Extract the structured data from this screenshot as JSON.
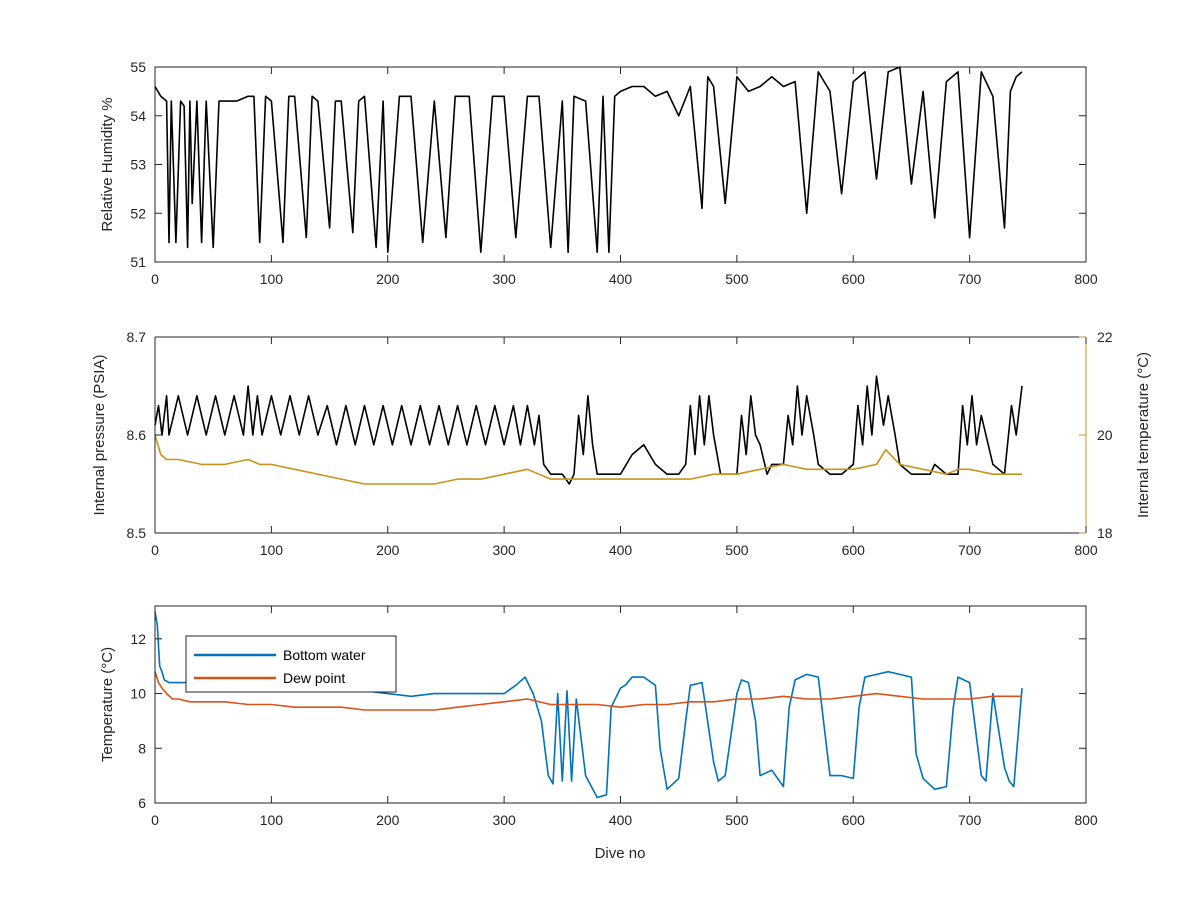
{
  "colors": {
    "black_series": "#000000",
    "orange_right": "#C9941C",
    "blue_bottom": "#0072BD",
    "red_dew": "#D95319",
    "axis": "#262626"
  },
  "chart_data": [
    {
      "type": "line",
      "xlabel": "",
      "ylabel": "Relative Humidity %",
      "xlim": [
        0,
        800
      ],
      "ylim": [
        51,
        55
      ],
      "xticks": [
        0,
        100,
        200,
        300,
        400,
        500,
        600,
        700,
        800
      ],
      "yticks": [
        51,
        52,
        53,
        54,
        55
      ],
      "xtick_labels": [
        "0",
        "100",
        "200",
        "300",
        "400",
        "500",
        "600",
        "700",
        "800"
      ],
      "ytick_labels": [
        "51",
        "52",
        "53",
        "54",
        "55"
      ],
      "grid": false,
      "series": [
        {
          "color": "#000000",
          "x": [
            0,
            5,
            10,
            12,
            14,
            18,
            22,
            25,
            28,
            30,
            32,
            36,
            40,
            44,
            50,
            55,
            60,
            70,
            80,
            85,
            90,
            95,
            100,
            110,
            115,
            120,
            130,
            135,
            140,
            150,
            155,
            160,
            170,
            175,
            180,
            190,
            196,
            200,
            210,
            220,
            230,
            240,
            250,
            258,
            270,
            280,
            290,
            300,
            310,
            320,
            330,
            340,
            350,
            355,
            360,
            370,
            380,
            385,
            390,
            395,
            400,
            410,
            420,
            430,
            440,
            450,
            460,
            470,
            475,
            480,
            490,
            500,
            510,
            520,
            530,
            540,
            550,
            560,
            570,
            580,
            590,
            600,
            610,
            620,
            630,
            640,
            650,
            660,
            670,
            680,
            690,
            700,
            710,
            720,
            730,
            735,
            740,
            745
          ],
          "y": [
            54.6,
            54.4,
            54.3,
            51.4,
            54.3,
            51.4,
            54.3,
            54.2,
            51.3,
            54.3,
            52.2,
            54.3,
            51.4,
            54.3,
            51.3,
            54.3,
            54.3,
            54.3,
            54.4,
            54.4,
            51.4,
            54.4,
            54.3,
            51.4,
            54.4,
            54.4,
            51.5,
            54.4,
            54.3,
            51.7,
            54.3,
            54.3,
            51.6,
            54.3,
            54.4,
            51.3,
            54.3,
            51.2,
            54.4,
            54.4,
            51.4,
            54.3,
            51.5,
            54.4,
            54.4,
            51.2,
            54.4,
            54.4,
            51.5,
            54.4,
            54.4,
            51.3,
            54.3,
            51.2,
            54.4,
            54.3,
            51.2,
            54.4,
            51.2,
            54.4,
            54.5,
            54.6,
            54.6,
            54.4,
            54.5,
            54.0,
            54.6,
            52.1,
            54.8,
            54.6,
            52.2,
            54.8,
            54.5,
            54.6,
            54.8,
            54.6,
            54.7,
            52.0,
            54.9,
            54.5,
            52.4,
            54.7,
            54.9,
            52.7,
            54.9,
            55.0,
            52.6,
            54.5,
            51.9,
            54.7,
            54.9,
            51.5,
            54.9,
            54.4,
            51.7,
            54.5,
            54.8,
            54.9
          ]
        }
      ]
    },
    {
      "type": "line",
      "xlabel": "",
      "ylabel": "Internal pressure (PSIA)",
      "ylabel_right": "Internal temperature (°C)",
      "xlim": [
        0,
        800
      ],
      "ylim": [
        8.5,
        8.7
      ],
      "ylim_right": [
        18,
        22
      ],
      "xticks": [
        0,
        100,
        200,
        300,
        400,
        500,
        600,
        700,
        800
      ],
      "yticks": [
        8.5,
        8.6,
        8.7
      ],
      "yticks_right": [
        18,
        20,
        22
      ],
      "xtick_labels": [
        "0",
        "100",
        "200",
        "300",
        "400",
        "500",
        "600",
        "700",
        "800"
      ],
      "ytick_labels": [
        "8.5",
        "8.6",
        "8.7"
      ],
      "ytick_labels_right": [
        "18",
        "20",
        "22"
      ],
      "grid": false,
      "series": [
        {
          "axis": "left",
          "color": "#000000",
          "x": [
            0,
            3,
            6,
            8,
            10,
            12,
            20,
            28,
            36,
            44,
            52,
            60,
            68,
            76,
            80,
            84,
            88,
            92,
            100,
            108,
            116,
            124,
            132,
            140,
            148,
            156,
            164,
            172,
            180,
            188,
            196,
            204,
            212,
            220,
            228,
            236,
            244,
            252,
            260,
            268,
            276,
            284,
            292,
            300,
            308,
            314,
            320,
            326,
            330,
            334,
            340,
            350,
            356,
            360,
            364,
            368,
            372,
            376,
            380,
            390,
            400,
            410,
            420,
            430,
            440,
            450,
            456,
            460,
            464,
            468,
            472,
            476,
            480,
            486,
            490,
            500,
            504,
            508,
            512,
            516,
            520,
            526,
            530,
            540,
            544,
            548,
            552,
            556,
            560,
            566,
            570,
            580,
            590,
            600,
            604,
            608,
            612,
            616,
            620,
            626,
            630,
            636,
            640,
            650,
            660,
            666,
            670,
            680,
            690,
            694,
            698,
            702,
            706,
            710,
            720,
            730,
            736,
            740,
            745
          ],
          "y": [
            8.61,
            8.63,
            8.6,
            8.62,
            8.64,
            8.6,
            8.64,
            8.6,
            8.64,
            8.6,
            8.64,
            8.6,
            8.64,
            8.6,
            8.65,
            8.6,
            8.64,
            8.6,
            8.64,
            8.6,
            8.64,
            8.6,
            8.64,
            8.6,
            8.63,
            8.59,
            8.63,
            8.59,
            8.63,
            8.59,
            8.63,
            8.59,
            8.63,
            8.59,
            8.63,
            8.59,
            8.63,
            8.59,
            8.63,
            8.59,
            8.63,
            8.59,
            8.63,
            8.59,
            8.63,
            8.59,
            8.63,
            8.59,
            8.62,
            8.57,
            8.56,
            8.56,
            8.55,
            8.56,
            8.62,
            8.58,
            8.64,
            8.59,
            8.56,
            8.56,
            8.56,
            8.58,
            8.59,
            8.57,
            8.56,
            8.56,
            8.57,
            8.63,
            8.58,
            8.64,
            8.59,
            8.64,
            8.6,
            8.56,
            8.56,
            8.56,
            8.62,
            8.58,
            8.64,
            8.6,
            8.59,
            8.56,
            8.57,
            8.57,
            8.62,
            8.59,
            8.65,
            8.6,
            8.64,
            8.6,
            8.57,
            8.56,
            8.56,
            8.57,
            8.63,
            8.59,
            8.65,
            8.6,
            8.66,
            8.61,
            8.64,
            8.6,
            8.57,
            8.56,
            8.56,
            8.56,
            8.57,
            8.56,
            8.56,
            8.63,
            8.59,
            8.64,
            8.59,
            8.62,
            8.57,
            8.56,
            8.63,
            8.6,
            8.65
          ]
        },
        {
          "axis": "right",
          "color": "#C9941C",
          "x": [
            0,
            5,
            10,
            20,
            40,
            60,
            80,
            90,
            100,
            120,
            140,
            160,
            180,
            200,
            220,
            240,
            260,
            280,
            300,
            320,
            330,
            340,
            360,
            380,
            400,
            420,
            440,
            460,
            480,
            500,
            520,
            540,
            560,
            580,
            600,
            620,
            628,
            640,
            660,
            680,
            690,
            700,
            720,
            745
          ],
          "y": [
            20.0,
            19.6,
            19.5,
            19.5,
            19.4,
            19.4,
            19.5,
            19.4,
            19.4,
            19.3,
            19.2,
            19.1,
            19.0,
            19.0,
            19.0,
            19.0,
            19.1,
            19.1,
            19.2,
            19.3,
            19.2,
            19.1,
            19.1,
            19.1,
            19.1,
            19.1,
            19.1,
            19.1,
            19.2,
            19.2,
            19.3,
            19.4,
            19.3,
            19.3,
            19.3,
            19.4,
            19.7,
            19.4,
            19.3,
            19.2,
            19.3,
            19.3,
            19.2,
            19.2
          ]
        }
      ]
    },
    {
      "type": "line",
      "xlabel": "Dive no",
      "ylabel": "Temperature (°C)",
      "xlim": [
        0,
        800
      ],
      "ylim": [
        6,
        13.2
      ],
      "xticks": [
        0,
        100,
        200,
        300,
        400,
        500,
        600,
        700,
        800
      ],
      "yticks": [
        6,
        8,
        10,
        12
      ],
      "xtick_labels": [
        "0",
        "100",
        "200",
        "300",
        "400",
        "500",
        "600",
        "700",
        "800"
      ],
      "ytick_labels": [
        "6",
        "8",
        "10",
        "12"
      ],
      "grid": false,
      "legend": "top-left",
      "series": [
        {
          "name": "Bottom water",
          "color": "#0072BD",
          "x": [
            0,
            2,
            4,
            6,
            8,
            12,
            20,
            40,
            60,
            80,
            100,
            120,
            140,
            160,
            180,
            200,
            220,
            240,
            260,
            280,
            300,
            310,
            318,
            325,
            332,
            338,
            342,
            346,
            350,
            354,
            358,
            362,
            370,
            380,
            388,
            392,
            400,
            404,
            410,
            420,
            430,
            434,
            440,
            450,
            456,
            460,
            470,
            480,
            484,
            490,
            500,
            504,
            510,
            516,
            520,
            530,
            540,
            545,
            550,
            560,
            570,
            580,
            590,
            600,
            605,
            610,
            620,
            630,
            640,
            650,
            654,
            660,
            670,
            680,
            686,
            690,
            700,
            710,
            714,
            720,
            730,
            734,
            738,
            745
          ],
          "y": [
            13.0,
            12.5,
            11.0,
            10.8,
            10.5,
            10.4,
            10.4,
            10.4,
            10.3,
            10.3,
            10.2,
            10.2,
            10.2,
            10.2,
            10.1,
            10.0,
            9.9,
            10.0,
            10.0,
            10.0,
            10.0,
            10.3,
            10.6,
            10.0,
            9.0,
            7.0,
            6.7,
            10.0,
            6.8,
            10.1,
            6.8,
            9.8,
            7.0,
            6.2,
            6.3,
            9.5,
            10.2,
            10.3,
            10.6,
            10.6,
            10.3,
            8.0,
            6.5,
            6.9,
            9.0,
            10.3,
            10.4,
            7.5,
            6.8,
            7.0,
            10.0,
            10.5,
            10.4,
            9.0,
            7.0,
            7.2,
            6.6,
            9.5,
            10.5,
            10.7,
            10.6,
            7.0,
            7.0,
            6.9,
            9.5,
            10.6,
            10.7,
            10.8,
            10.7,
            10.6,
            7.8,
            6.9,
            6.5,
            6.6,
            9.5,
            10.6,
            10.4,
            7.0,
            6.8,
            10.0,
            7.3,
            6.8,
            6.6,
            10.2
          ]
        },
        {
          "name": "Dew point",
          "color": "#D95319",
          "x": [
            0,
            3,
            6,
            10,
            15,
            20,
            30,
            40,
            60,
            80,
            100,
            120,
            140,
            160,
            180,
            200,
            220,
            240,
            260,
            280,
            300,
            320,
            340,
            360,
            380,
            400,
            420,
            440,
            460,
            480,
            500,
            520,
            540,
            560,
            580,
            600,
            620,
            640,
            660,
            680,
            700,
            720,
            745
          ],
          "y": [
            10.8,
            10.4,
            10.2,
            10.0,
            9.8,
            9.8,
            9.7,
            9.7,
            9.7,
            9.6,
            9.6,
            9.5,
            9.5,
            9.5,
            9.4,
            9.4,
            9.4,
            9.4,
            9.5,
            9.6,
            9.7,
            9.8,
            9.6,
            9.6,
            9.6,
            9.5,
            9.6,
            9.6,
            9.7,
            9.7,
            9.8,
            9.8,
            9.9,
            9.8,
            9.8,
            9.9,
            10.0,
            9.9,
            9.8,
            9.8,
            9.8,
            9.9,
            9.9
          ]
        }
      ]
    }
  ]
}
